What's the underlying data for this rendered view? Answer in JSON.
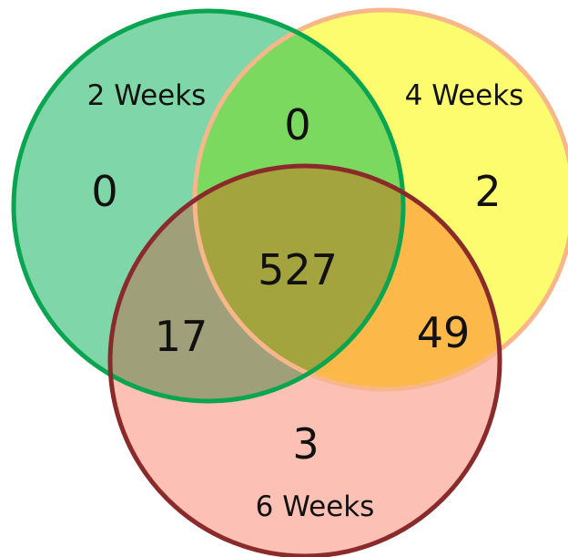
{
  "sets": [
    {
      "key": "a",
      "label": "2 Weeks",
      "fill": "#7fd6a8",
      "stroke": "#0aa550"
    },
    {
      "key": "b",
      "label": "4 Weeks",
      "fill": "#fdfc6e",
      "stroke": "#f7b78a"
    },
    {
      "key": "c",
      "label": "6 Weeks",
      "fill": "#fcc0b4",
      "stroke": "#8b2a2a"
    }
  ],
  "regions": {
    "a_only": "0",
    "b_only": "2",
    "c_only": "3",
    "ab": "0",
    "ac": "17",
    "bc": "49",
    "abc": "527"
  },
  "overlap_colors": {
    "ab": "#7cd960",
    "ac": "#9fa07a",
    "bc": "#fdb84a",
    "abc": "#a4a43e"
  }
}
